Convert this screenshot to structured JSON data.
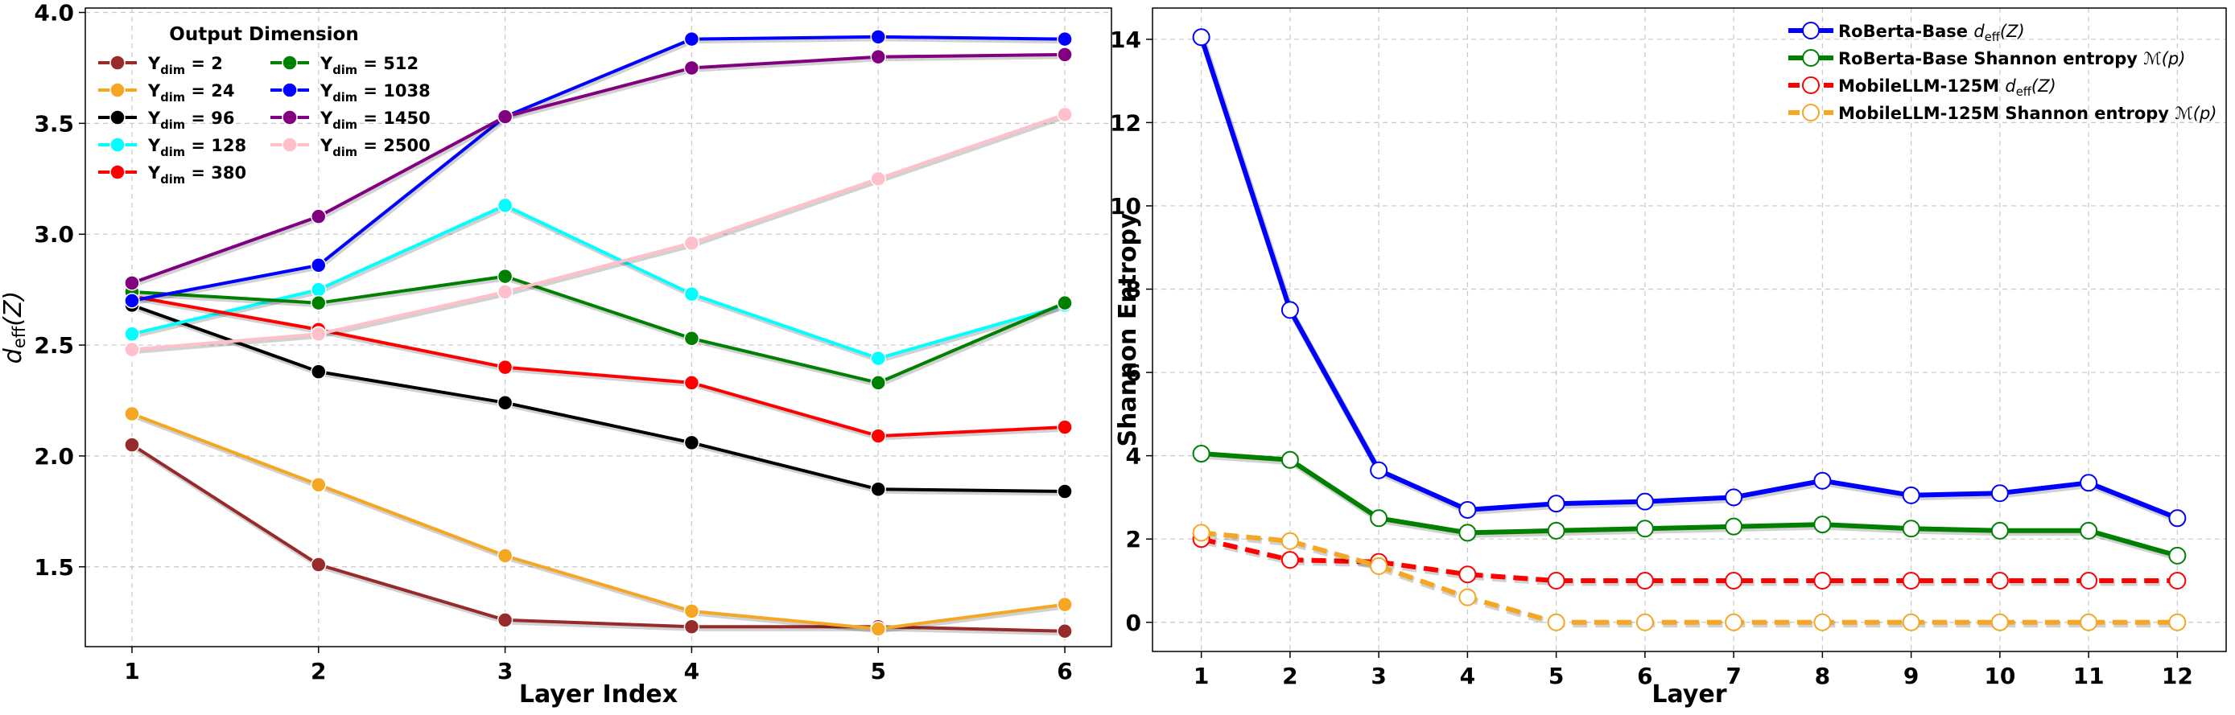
{
  "chart_data": [
    {
      "type": "line",
      "xlabel": "Layer Index",
      "ylabel": "d_eff(Z)",
      "x": [
        1,
        2,
        3,
        4,
        5,
        6
      ],
      "xlim": [
        0.75,
        6.25
      ],
      "ylim": [
        1.14,
        4.02
      ],
      "yticks": [
        1.5,
        2.0,
        2.5,
        3.0,
        3.5,
        4.0
      ],
      "grid": true,
      "legend": {
        "placement": "top-left",
        "title": "Output Dimension",
        "columns": 2
      },
      "series": [
        {
          "name": "Y_dim = 2",
          "color": "#972a2a",
          "values": [
            2.05,
            1.51,
            1.26,
            1.23,
            1.23,
            1.21
          ]
        },
        {
          "name": "Y_dim = 24",
          "color": "#f5a623",
          "values": [
            2.19,
            1.87,
            1.55,
            1.3,
            1.22,
            1.33
          ]
        },
        {
          "name": "Y_dim = 96",
          "color": "#000000",
          "values": [
            2.68,
            2.38,
            2.24,
            2.06,
            1.85,
            1.84
          ]
        },
        {
          "name": "Y_dim = 128",
          "color": "#00ffff",
          "values": [
            2.55,
            2.75,
            3.13,
            2.73,
            2.44,
            2.68
          ]
        },
        {
          "name": "Y_dim = 380",
          "color": "#ff0000",
          "values": [
            2.72,
            2.57,
            2.4,
            2.33,
            2.09,
            2.13
          ]
        },
        {
          "name": "Y_dim = 512",
          "color": "#008000",
          "values": [
            2.74,
            2.69,
            2.81,
            2.53,
            2.33,
            2.69
          ]
        },
        {
          "name": "Y_dim = 1038",
          "color": "#0000ff",
          "values": [
            2.7,
            2.86,
            3.53,
            3.88,
            3.89,
            3.88
          ]
        },
        {
          "name": "Y_dim = 1450",
          "color": "#800080",
          "values": [
            2.78,
            3.08,
            3.53,
            3.75,
            3.8,
            3.81
          ]
        },
        {
          "name": "Y_dim = 2500",
          "color": "#ffc0cb",
          "values": [
            2.48,
            2.55,
            2.74,
            2.96,
            3.25,
            3.54
          ]
        }
      ]
    },
    {
      "type": "line",
      "xlabel": "Layer",
      "ylabel": "Shannon Entropy",
      "x": [
        1,
        2,
        3,
        4,
        5,
        6,
        7,
        8,
        9,
        10,
        11,
        12
      ],
      "xlim": [
        0.45,
        12.55
      ],
      "ylim": [
        -0.7,
        14.75
      ],
      "yticks": [
        0,
        2,
        4,
        6,
        8,
        10,
        12,
        14
      ],
      "grid": true,
      "legend": {
        "placement": "top-right"
      },
      "series": [
        {
          "name": "RoBerta-Base d_eff(Z)",
          "color": "#0000ff",
          "dashed": false,
          "values": [
            14.05,
            7.5,
            3.65,
            2.7,
            2.85,
            2.9,
            3.0,
            3.4,
            3.05,
            3.1,
            3.35,
            2.5
          ]
        },
        {
          "name": "RoBerta-Base Shannon entropy M(p)",
          "color": "#008000",
          "dashed": false,
          "values": [
            4.05,
            3.9,
            2.5,
            2.15,
            2.2,
            2.25,
            2.3,
            2.35,
            2.25,
            2.2,
            2.2,
            1.6
          ]
        },
        {
          "name": "MobileLLM-125M d_eff(Z)",
          "color": "#ff0000",
          "dashed": true,
          "values": [
            2.0,
            1.5,
            1.45,
            1.15,
            1.0,
            1.0,
            1.0,
            1.0,
            1.0,
            1.0,
            1.0,
            1.0
          ]
        },
        {
          "name": "MobileLLM-125M Shannon entropy M(p)",
          "color": "#f5a623",
          "dashed": true,
          "values": [
            2.15,
            1.95,
            1.35,
            0.6,
            0.0,
            0.0,
            0.0,
            0.0,
            0.0,
            0.0,
            0.0,
            0.0
          ]
        }
      ]
    }
  ]
}
